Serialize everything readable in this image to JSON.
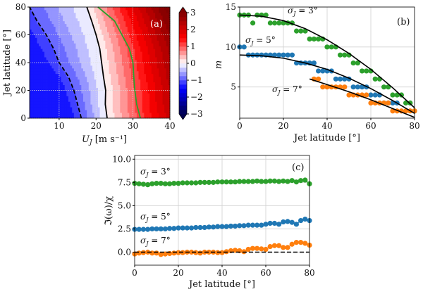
{
  "chart_data": [
    {
      "panel": "(a)",
      "type": "heatmap",
      "xlabel": "U_J [m s⁻¹]",
      "xlabel_main": "U",
      "xlabel_sub": "J",
      "xlabel_unit": " [m s⁻¹]",
      "ylabel": "Jet latitude [°]",
      "xlim": [
        2,
        40
      ],
      "ylim": [
        0,
        80
      ],
      "xticks": [
        10,
        20,
        30,
        40
      ],
      "yticks": [
        0,
        20,
        40,
        60,
        80
      ],
      "grid": true,
      "colorbar": {
        "range": [
          -3,
          3
        ],
        "ticks": [
          3,
          2,
          1,
          0,
          -1,
          -2,
          -3
        ],
        "tick_labels": [
          "3",
          "2",
          "1",
          "0",
          "−1",
          "−2",
          "−3"
        ],
        "colormap": "seismic",
        "extend": "both",
        "level_step": 0.25
      },
      "contours": {
        "zero_solid": {
          "lat": [
            0,
            10,
            20,
            30,
            40,
            50,
            60,
            70,
            80
          ],
          "U": [
            23,
            22.5,
            22.6,
            22,
            21.5,
            21,
            20,
            18.8,
            17.5
          ],
          "color": "#000000"
        },
        "minus_one_dashed": {
          "lat": [
            0,
            10,
            20,
            30,
            40,
            50,
            60,
            70,
            80
          ],
          "U": [
            16,
            15,
            14,
            12.5,
            10,
            8.5,
            6.5,
            4,
            2
          ],
          "color": "#000000"
        },
        "green": {
          "lat": [
            0,
            10,
            20,
            30,
            40,
            50,
            60,
            70,
            80
          ],
          "U": [
            32,
            31,
            30.5,
            30.2,
            30,
            29,
            27,
            25,
            20.5
          ],
          "color": "#2ca02c"
        }
      }
    },
    {
      "panel": "(b)",
      "type": "scatter",
      "xlabel": "Jet latitude [°]",
      "ylabel": "m",
      "xlim": [
        0,
        80
      ],
      "ylim": [
        1.1,
        15
      ],
      "xticks": [
        0,
        20,
        40,
        60,
        80
      ],
      "yticks": [
        5,
        10,
        15
      ],
      "grid": true,
      "series": [
        {
          "name": "σJ = 3°",
          "color": "#2ca02c",
          "x": [
            0,
            2,
            4,
            6,
            8,
            10,
            12,
            14,
            16,
            18,
            20,
            22,
            24,
            26,
            28,
            30,
            32,
            34,
            36,
            38,
            40,
            42,
            44,
            46,
            48,
            50,
            52,
            54,
            56,
            58,
            60,
            62,
            64,
            66,
            68,
            70,
            72,
            74,
            76,
            78,
            80
          ],
          "y": [
            14,
            14,
            14,
            13,
            14,
            14,
            14,
            13,
            13,
            13,
            13,
            13,
            13,
            12,
            12,
            12,
            11,
            11,
            11,
            11,
            10,
            10,
            10,
            9,
            9,
            9,
            8,
            8,
            7,
            7,
            7,
            6,
            6,
            5,
            5,
            4,
            4,
            4,
            3,
            3,
            2
          ],
          "fit": {
            "x": [
              0,
              10,
              20,
              30,
              40,
              50,
              60,
              70,
              80
            ],
            "y": [
              14,
              13.85,
              13.3,
              12.3,
              10.9,
              9.2,
              7.2,
              4.9,
              2.4
            ]
          }
        },
        {
          "name": "σJ = 5°",
          "color": "#1f77b4",
          "x": [
            0,
            2,
            4,
            6,
            8,
            10,
            12,
            14,
            16,
            18,
            20,
            22,
            24,
            26,
            28,
            30,
            32,
            34,
            36,
            38,
            40,
            42,
            44,
            46,
            48,
            50,
            52,
            54,
            56,
            58,
            60,
            62,
            64,
            66,
            68,
            70,
            72
          ],
          "y": [
            10,
            10,
            9,
            9,
            9,
            9,
            9,
            9,
            9,
            9,
            9,
            9,
            9,
            8,
            8,
            8,
            8,
            8,
            7,
            7,
            7,
            7,
            6,
            6,
            6,
            6,
            5,
            5,
            5,
            5,
            4,
            4,
            4,
            3,
            3,
            3,
            3
          ],
          "fit": {
            "x": [
              0,
              10,
              20,
              30,
              40,
              50,
              60,
              70,
              80
            ],
            "y": [
              9,
              8.9,
              8.6,
              8.0,
              7.2,
              6.1,
              4.8,
              3.3,
              1.7
            ]
          }
        },
        {
          "name": "σJ = 7°",
          "color": "#ff7f0e",
          "x": [
            34,
            36,
            38,
            40,
            42,
            44,
            46,
            48,
            50,
            52,
            54,
            56,
            58,
            60,
            62,
            64,
            66,
            68,
            70,
            72,
            74,
            76,
            78,
            80
          ],
          "y": [
            6,
            6,
            5,
            5,
            5,
            5,
            5,
            5,
            4,
            4,
            4,
            4,
            4,
            3,
            3,
            3,
            3,
            3,
            2,
            2,
            2,
            2,
            2,
            2
          ],
          "fit": {
            "x": [
              32,
              40,
              50,
              60,
              70,
              80
            ],
            "y": [
              6,
              5.3,
              4.4,
              3.4,
              2.3,
              1.2
            ]
          }
        }
      ],
      "annotations": [
        "σ",
        "J",
        " = 3°",
        " = 5°",
        " = 7°"
      ]
    },
    {
      "panel": "(c)",
      "type": "scatter",
      "xlabel": "Jet latitude [°]",
      "ylabel": "ℑ(ω)/χ",
      "xlim": [
        0,
        80
      ],
      "ylim": [
        -1.4,
        10.4
      ],
      "xticks": [
        0,
        20,
        40,
        60,
        80
      ],
      "yticks": [
        0,
        2.5,
        5,
        7.5,
        10
      ],
      "ytick_labels": [
        "0.0",
        "2.5",
        "5.0",
        "7.5",
        "10.0"
      ],
      "grid": true,
      "reference_line": {
        "y": 0,
        "style": "dashed",
        "color": "#000000"
      },
      "x": [
        0,
        2,
        4,
        6,
        8,
        10,
        12,
        14,
        16,
        18,
        20,
        22,
        24,
        26,
        28,
        30,
        32,
        34,
        36,
        38,
        40,
        42,
        44,
        46,
        48,
        50,
        52,
        54,
        56,
        58,
        60,
        62,
        64,
        66,
        68,
        70,
        72,
        74,
        76,
        78,
        80
      ],
      "series": [
        {
          "name": "σJ = 3°",
          "color": "#2ca02c",
          "y": [
            7.4,
            7.35,
            7.3,
            7.25,
            7.35,
            7.4,
            7.4,
            7.35,
            7.35,
            7.4,
            7.4,
            7.45,
            7.45,
            7.45,
            7.45,
            7.5,
            7.5,
            7.5,
            7.5,
            7.55,
            7.55,
            7.55,
            7.55,
            7.55,
            7.6,
            7.6,
            7.6,
            7.6,
            7.65,
            7.6,
            7.6,
            7.65,
            7.65,
            7.6,
            7.65,
            7.6,
            7.7,
            7.55,
            7.7,
            7.75,
            7.35
          ]
        },
        {
          "name": "σJ = 5°",
          "color": "#1f77b4",
          "y": [
            2.45,
            2.45,
            2.45,
            2.45,
            2.5,
            2.5,
            2.5,
            2.5,
            2.55,
            2.55,
            2.6,
            2.6,
            2.6,
            2.6,
            2.65,
            2.65,
            2.65,
            2.7,
            2.7,
            2.75,
            2.75,
            2.75,
            2.8,
            2.8,
            2.85,
            2.85,
            2.9,
            2.9,
            2.9,
            2.9,
            3.0,
            3.1,
            3.1,
            3.0,
            3.25,
            3.3,
            3.2,
            3.0,
            3.4,
            3.55,
            3.4
          ]
        },
        {
          "name": "σJ = 7°",
          "color": "#ff7f0e",
          "y": [
            -0.2,
            -0.1,
            -0.05,
            0,
            -0.1,
            -0.1,
            -0.25,
            -0.2,
            -0.15,
            -0.1,
            -0.05,
            -0.05,
            0,
            0,
            -0.05,
            -0.1,
            0,
            0,
            0,
            -0.05,
            -0.05,
            0.05,
            0.15,
            0.2,
            0.15,
            0.05,
            0.3,
            0.4,
            0.4,
            0.35,
            0.3,
            0.6,
            0.7,
            0.7,
            0.5,
            0.5,
            0.85,
            1.05,
            1.05,
            0.95,
            0.75
          ]
        }
      ]
    }
  ]
}
